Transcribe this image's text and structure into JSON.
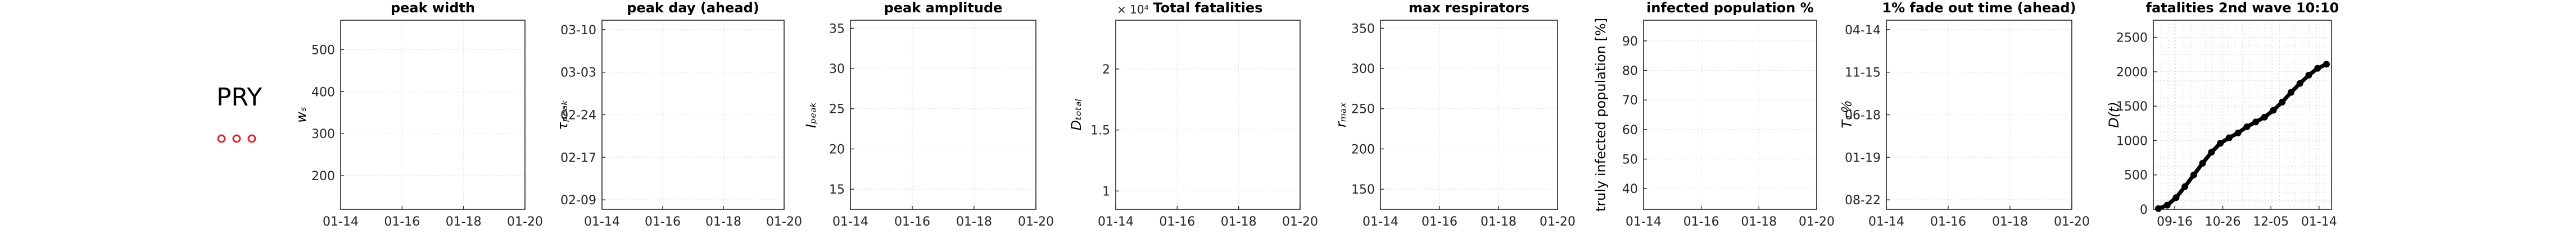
{
  "country": "PRY",
  "legend_marker_color": "#e0262a",
  "chart_data": [
    {
      "type": "line",
      "title": "peak width",
      "ylabel": "wₛ",
      "xlim": [
        "2021-01-14",
        "2021-01-20"
      ],
      "xticks": [
        "01-14",
        "01-16",
        "01-18",
        "01-20"
      ],
      "ylim": [
        120,
        570
      ],
      "yticks": [
        "200",
        "300",
        "400",
        "500"
      ],
      "ytick_values": [
        200,
        300,
        400,
        500
      ],
      "grid": true,
      "series": []
    },
    {
      "type": "line",
      "title": "peak day (ahead)",
      "ylabel": "τₚₑₐₖ",
      "xlim": [
        "2021-01-14",
        "2021-01-20"
      ],
      "xticks": [
        "01-14",
        "01-16",
        "01-18",
        "01-20"
      ],
      "ylim": [
        "2021-02-08",
        "2021-03-11"
      ],
      "yticks": [
        "02-09",
        "02-17",
        "02-24",
        "03-03",
        "03-10"
      ],
      "grid": true,
      "series": []
    },
    {
      "type": "line",
      "title": "peak amplitude",
      "ylabel": "Iₚₑₐₖ",
      "xlim": [
        "2021-01-14",
        "2021-01-20"
      ],
      "xticks": [
        "01-14",
        "01-16",
        "01-18",
        "01-20"
      ],
      "ylim": [
        12.5,
        36
      ],
      "yticks": [
        "15",
        "20",
        "25",
        "30",
        "35"
      ],
      "ytick_values": [
        15,
        20,
        25,
        30,
        35
      ],
      "grid": true,
      "series": []
    },
    {
      "type": "line",
      "title": "Total fatalities",
      "ylabel": "Dₜₒₜₐₗ",
      "scale_label": "× 10⁴",
      "xlim": [
        "2021-01-14",
        "2021-01-20"
      ],
      "xticks": [
        "01-14",
        "01-16",
        "01-18",
        "01-20"
      ],
      "ylim": [
        0.85,
        2.4
      ],
      "yticks": [
        "1",
        "1.5",
        "2"
      ],
      "ytick_values": [
        1,
        1.5,
        2
      ],
      "grid": true,
      "series": []
    },
    {
      "type": "line",
      "title": "max respirators",
      "ylabel": "rₘₐₓ",
      "xlim": [
        "2021-01-14",
        "2021-01-20"
      ],
      "xticks": [
        "01-14",
        "01-16",
        "01-18",
        "01-20"
      ],
      "ylim": [
        125,
        360
      ],
      "yticks": [
        "150",
        "200",
        "250",
        "300",
        "350"
      ],
      "ytick_values": [
        150,
        200,
        250,
        300,
        350
      ],
      "grid": true,
      "series": []
    },
    {
      "type": "line",
      "title": "infected population %",
      "ylabel": "truly infected population [%]",
      "xlim": [
        "2021-01-14",
        "2021-01-20"
      ],
      "xticks": [
        "01-14",
        "01-16",
        "01-18",
        "01-20"
      ],
      "ylim": [
        33,
        97
      ],
      "yticks": [
        "40",
        "50",
        "60",
        "70",
        "80",
        "90"
      ],
      "ytick_values": [
        40,
        50,
        60,
        70,
        80,
        90
      ],
      "grid": true,
      "series": []
    },
    {
      "type": "line",
      "title": "1% fade out time (ahead)",
      "ylabel": "T₁％",
      "xlim": [
        "2021-01-14",
        "2021-01-20"
      ],
      "xticks": [
        "01-14",
        "01-16",
        "01-18",
        "01-20"
      ],
      "ylim": [
        "2022-05-01",
        "2025-06-01"
      ],
      "yticks": [
        "08-22",
        "01-19",
        "06-18",
        "11-15",
        "04-14"
      ],
      "grid": true,
      "series": []
    },
    {
      "type": "scatter",
      "title": "fatalities 2nd wave 10:10",
      "ylabel": "D(t)",
      "xlim": [
        "2020-09-01",
        "2021-01-20"
      ],
      "xticks": [
        "09-16",
        "10-26",
        "12-05",
        "01-14"
      ],
      "ylim": [
        0,
        2750
      ],
      "yticks": [
        "0",
        "500",
        "1000",
        "1500",
        "2000",
        "2500"
      ],
      "ytick_values": [
        0,
        500,
        1000,
        1500,
        2000,
        2500
      ],
      "grid": true,
      "series": [
        {
          "x": [
            "2020-09-05",
            "2020-09-12",
            "2020-09-19",
            "2020-09-26",
            "2020-10-03",
            "2020-10-10",
            "2020-10-17",
            "2020-10-24",
            "2020-10-31",
            "2020-11-07",
            "2020-11-14",
            "2020-11-21",
            "2020-11-28",
            "2020-12-05",
            "2020-12-12",
            "2020-12-19",
            "2020-12-26",
            "2021-01-02",
            "2021-01-09",
            "2021-01-16"
          ],
          "y": [
            10,
            60,
            170,
            330,
            500,
            670,
            830,
            960,
            1040,
            1110,
            1200,
            1270,
            1340,
            1440,
            1560,
            1700,
            1830,
            1950,
            2050,
            2110
          ]
        }
      ]
    }
  ]
}
